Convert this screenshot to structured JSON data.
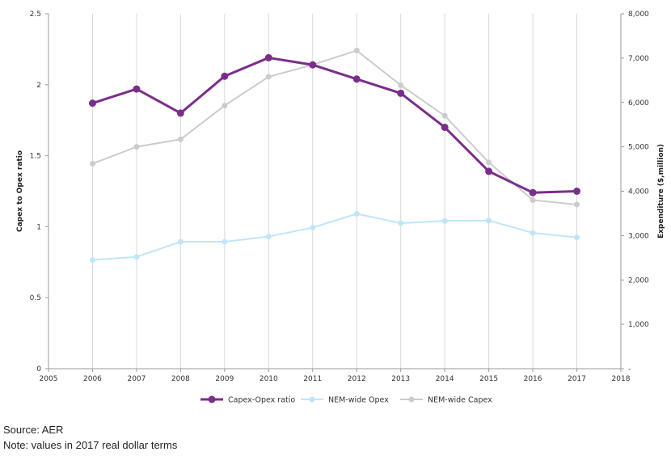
{
  "chart_data": {
    "type": "line",
    "x": [
      2006,
      2007,
      2008,
      2009,
      2010,
      2011,
      2012,
      2013,
      2014,
      2015,
      2016,
      2017
    ],
    "xlim": [
      2005,
      2018
    ],
    "x_ticks": [
      "2005",
      "2006",
      "2007",
      "2008",
      "2009",
      "2010",
      "2011",
      "2012",
      "2013",
      "2014",
      "2015",
      "2016",
      "2017",
      "2018"
    ],
    "ylabel_left": "Capex to Opex ratio",
    "ylim_left": [
      0,
      2.5
    ],
    "y_ticks_left": [
      "0",
      "0.5",
      "1",
      "1.5",
      "2",
      "2.5"
    ],
    "ylabel_right": "Expenditure ($,million)",
    "ylim_right": [
      0,
      8000
    ],
    "y_ticks_right": [
      "-",
      "1,000",
      "2,000",
      "3,000",
      "4,000",
      "5,000",
      "6,000",
      "7,000",
      "8,000"
    ],
    "grid": "vertical",
    "legend_position": "bottom",
    "series": [
      {
        "name": "Capex-Opex ratio",
        "axis": "left",
        "color": "#7b2d8b",
        "values": [
          1.87,
          1.97,
          1.8,
          2.06,
          2.19,
          2.14,
          2.04,
          1.94,
          1.7,
          1.39,
          1.24,
          1.25
        ]
      },
      {
        "name": "NEM-wide Opex",
        "axis": "right",
        "color": "#bfe6f8",
        "values": [
          2450,
          2520,
          2860,
          2860,
          2980,
          3180,
          3490,
          3280,
          3330,
          3340,
          3060,
          2960
        ]
      },
      {
        "name": "NEM-wide Capex",
        "axis": "right",
        "color": "#cccccc",
        "values": [
          4620,
          5000,
          5170,
          5930,
          6580,
          6850,
          7170,
          6390,
          5700,
          4650,
          3800,
          3700
        ]
      }
    ]
  },
  "notes": {
    "source": "Source: AER",
    "note": "Note: values in 2017 real dollar terms"
  }
}
